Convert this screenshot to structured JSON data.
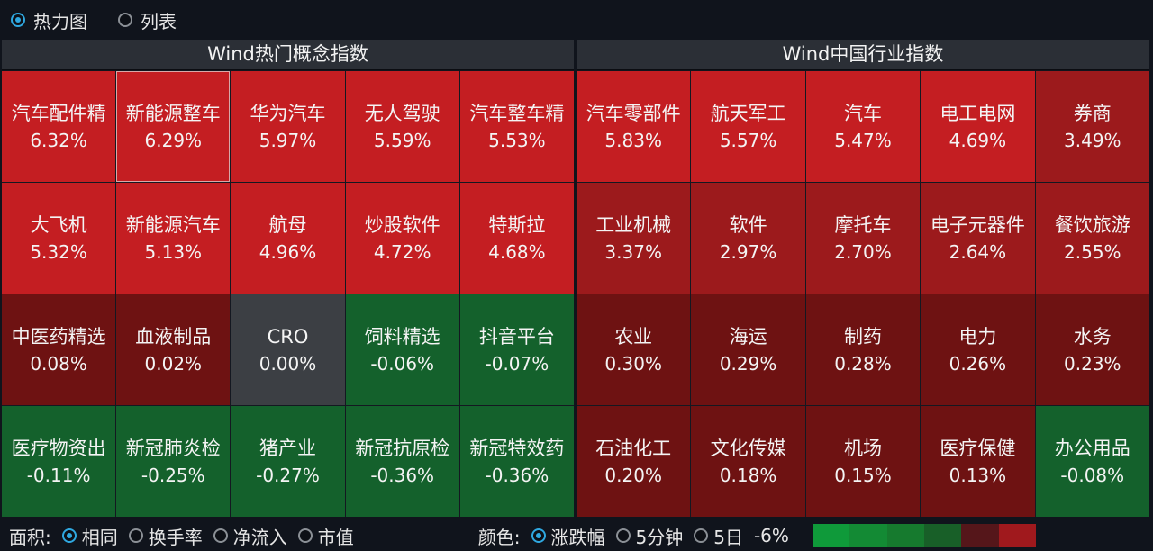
{
  "view_toggle": [
    {
      "label": "热力图",
      "selected": true
    },
    {
      "label": "列表",
      "selected": false
    }
  ],
  "left_panel": {
    "title": "Wind热门概念指数",
    "cells": [
      {
        "name": "汽车配件精",
        "pct": "6.32%",
        "color": "#c41e22"
      },
      {
        "name": "新能源整车",
        "pct": "6.29%",
        "color": "#c41e22",
        "selected": true
      },
      {
        "name": "华为汽车",
        "pct": "5.97%",
        "color": "#c41e22"
      },
      {
        "name": "无人驾驶",
        "pct": "5.59%",
        "color": "#c41e22"
      },
      {
        "name": "汽车整车精",
        "pct": "5.53%",
        "color": "#c41e22"
      },
      {
        "name": "大飞机",
        "pct": "5.32%",
        "color": "#c41e22"
      },
      {
        "name": "新能源汽车",
        "pct": "5.13%",
        "color": "#c41e22"
      },
      {
        "name": "航母",
        "pct": "4.96%",
        "color": "#c41e22"
      },
      {
        "name": "炒股软件",
        "pct": "4.72%",
        "color": "#c41e22"
      },
      {
        "name": "特斯拉",
        "pct": "4.68%",
        "color": "#c41e22"
      },
      {
        "name": "中医药精选",
        "pct": "0.08%",
        "color": "#6e1212"
      },
      {
        "name": "血液制品",
        "pct": "0.02%",
        "color": "#6e1212"
      },
      {
        "name": "CRO",
        "pct": "0.00%",
        "color": "#3c3f44"
      },
      {
        "name": "饲料精选",
        "pct": "-0.06%",
        "color": "#14612c"
      },
      {
        "name": "抖音平台",
        "pct": "-0.07%",
        "color": "#14612c"
      },
      {
        "name": "医疗物资出",
        "pct": "-0.11%",
        "color": "#14612c"
      },
      {
        "name": "新冠肺炎检",
        "pct": "-0.25%",
        "color": "#14612c"
      },
      {
        "name": "猪产业",
        "pct": "-0.27%",
        "color": "#14612c"
      },
      {
        "name": "新冠抗原检",
        "pct": "-0.36%",
        "color": "#14612c"
      },
      {
        "name": "新冠特效药",
        "pct": "-0.36%",
        "color": "#14612c"
      }
    ]
  },
  "right_panel": {
    "title": "Wind中国行业指数",
    "cells": [
      {
        "name": "汽车零部件",
        "pct": "5.83%",
        "color": "#c41e22"
      },
      {
        "name": "航天军工",
        "pct": "5.57%",
        "color": "#c41e22"
      },
      {
        "name": "汽车",
        "pct": "5.47%",
        "color": "#c41e22"
      },
      {
        "name": "电工电网",
        "pct": "4.69%",
        "color": "#c41e22"
      },
      {
        "name": "券商",
        "pct": "3.49%",
        "color": "#9c1a1c"
      },
      {
        "name": "工业机械",
        "pct": "3.37%",
        "color": "#9c1a1c"
      },
      {
        "name": "软件",
        "pct": "2.97%",
        "color": "#9c1a1c"
      },
      {
        "name": "摩托车",
        "pct": "2.70%",
        "color": "#9c1a1c"
      },
      {
        "name": "电子元器件",
        "pct": "2.64%",
        "color": "#9c1a1c"
      },
      {
        "name": "餐饮旅游",
        "pct": "2.55%",
        "color": "#9c1a1c"
      },
      {
        "name": "农业",
        "pct": "0.30%",
        "color": "#6e1212"
      },
      {
        "name": "海运",
        "pct": "0.29%",
        "color": "#6e1212"
      },
      {
        "name": "制药",
        "pct": "0.28%",
        "color": "#6e1212"
      },
      {
        "name": "电力",
        "pct": "0.26%",
        "color": "#6e1212"
      },
      {
        "name": "水务",
        "pct": "0.23%",
        "color": "#6e1212"
      },
      {
        "name": "石油化工",
        "pct": "0.20%",
        "color": "#6e1212"
      },
      {
        "name": "文化传媒",
        "pct": "0.18%",
        "color": "#6e1212"
      },
      {
        "name": "机场",
        "pct": "0.15%",
        "color": "#6e1212"
      },
      {
        "name": "医疗保健",
        "pct": "0.13%",
        "color": "#6e1212"
      },
      {
        "name": "办公用品",
        "pct": "-0.08%",
        "color": "#14612c"
      }
    ]
  },
  "bottom": {
    "area_label": "面积:",
    "area_options": [
      {
        "label": "相同",
        "selected": true
      },
      {
        "label": "换手率",
        "selected": false
      },
      {
        "label": "净流入",
        "selected": false
      },
      {
        "label": "市值",
        "selected": false
      }
    ],
    "color_label": "颜色:",
    "color_options": [
      {
        "label": "涨跌幅",
        "selected": true
      },
      {
        "label": "5分钟",
        "selected": false
      },
      {
        "label": "5日",
        "selected": false
      }
    ],
    "legend_min": "-6%",
    "legend_colors": [
      "#0f9a3a",
      "#138a34",
      "#167a2e",
      "#185f28",
      "#55161a",
      "#a0191d"
    ]
  }
}
